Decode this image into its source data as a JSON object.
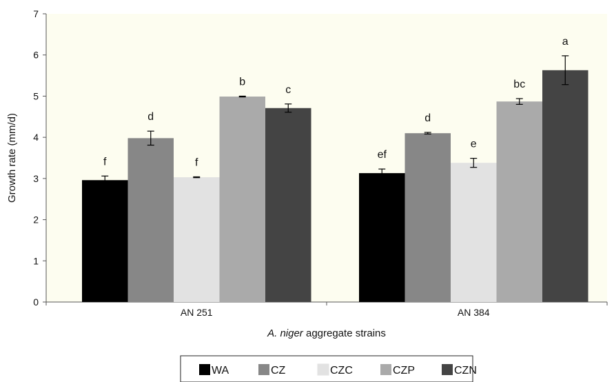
{
  "chart_data": {
    "type": "bar",
    "title": "",
    "xlabel_italic": "A. niger",
    "xlabel_rest": " aggregate strains",
    "ylabel": "Growth rate (mm/d)",
    "ylim": [
      0,
      7
    ],
    "yticks": [
      "0",
      "1",
      "2",
      "3",
      "4",
      "5",
      "6",
      "7"
    ],
    "categories": [
      "AN 251",
      "AN 384"
    ],
    "plot_background": "#fdfdf0",
    "legend_position": "bottom",
    "series": [
      {
        "name": "WA",
        "color": "#000000",
        "values": [
          2.96,
          3.13
        ],
        "errors": [
          0.1,
          0.1
        ],
        "labels": [
          "f",
          "ef"
        ]
      },
      {
        "name": "CZ",
        "color": "#878787",
        "values": [
          3.98,
          4.1
        ],
        "errors": [
          0.17,
          0.02
        ],
        "labels": [
          "d",
          "d"
        ]
      },
      {
        "name": "CZC",
        "color": "#e2e2e2",
        "values": [
          3.03,
          3.38
        ],
        "errors": [
          0.01,
          0.11
        ],
        "labels": [
          "f",
          "e"
        ]
      },
      {
        "name": "CZP",
        "color": "#aaaaaa",
        "values": [
          4.99,
          4.87
        ],
        "errors": [
          0.01,
          0.07
        ],
        "labels": [
          "b",
          "bc"
        ]
      },
      {
        "name": "CZN",
        "color": "#444444",
        "values": [
          4.71,
          5.63
        ],
        "errors": [
          0.1,
          0.35
        ],
        "labels": [
          "c",
          "a"
        ]
      }
    ]
  }
}
